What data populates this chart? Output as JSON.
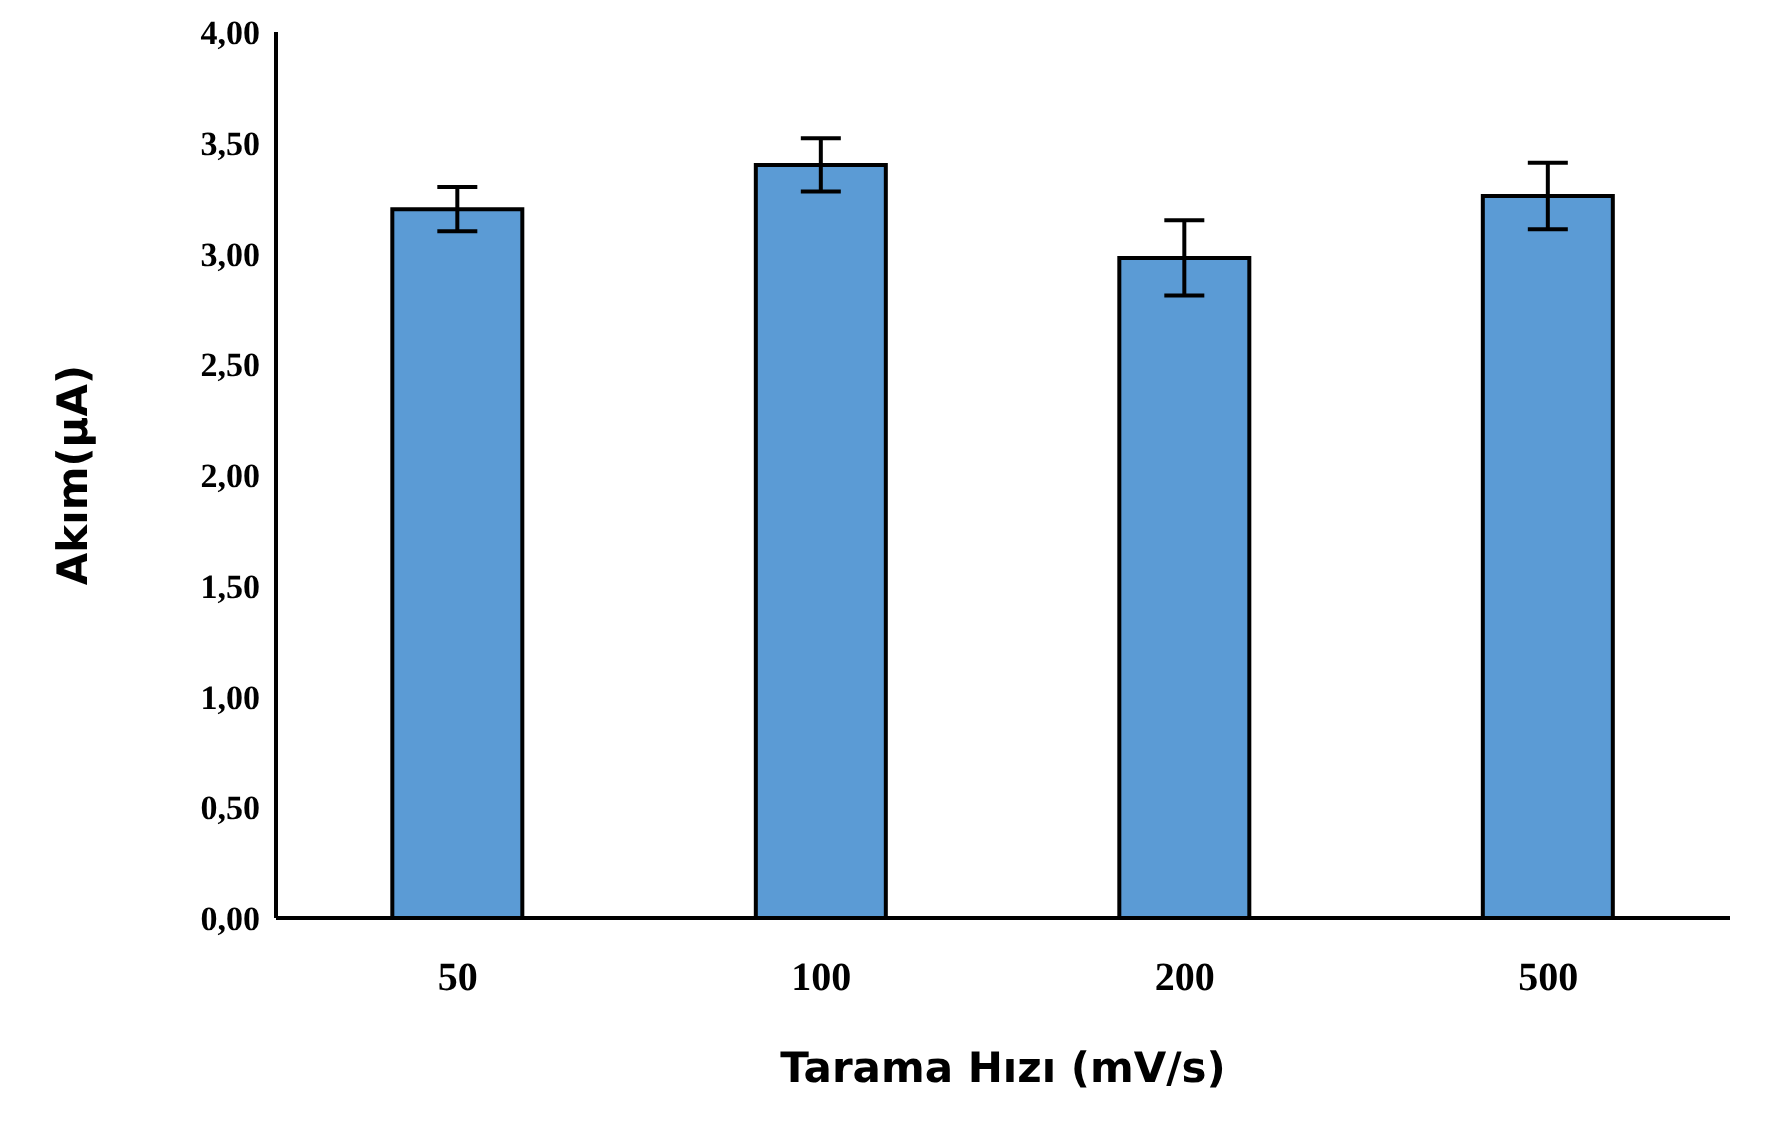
{
  "chart_data": {
    "type": "bar",
    "xlabel": "Tarama Hızı (mV/s)",
    "ylabel": "Akım(µA)",
    "categories": [
      "50",
      "100",
      "200",
      "500"
    ],
    "values": [
      3.2,
      3.4,
      2.98,
      3.26
    ],
    "errors": [
      0.1,
      0.12,
      0.17,
      0.15
    ],
    "color": "#5b9bd5",
    "ylim": [
      0,
      4
    ],
    "yticks": [
      {
        "value": 0,
        "label": "0,00"
      },
      {
        "value": 0.5,
        "label": "0,50"
      },
      {
        "value": 1,
        "label": "1,00"
      },
      {
        "value": 1.5,
        "label": "1,50"
      },
      {
        "value": 2,
        "label": "2,00"
      },
      {
        "value": 2.5,
        "label": "2,50"
      },
      {
        "value": 3,
        "label": "3,00"
      },
      {
        "value": 3.5,
        "label": "3,50"
      },
      {
        "value": 4,
        "label": "4,00"
      }
    ],
    "grid": false
  }
}
